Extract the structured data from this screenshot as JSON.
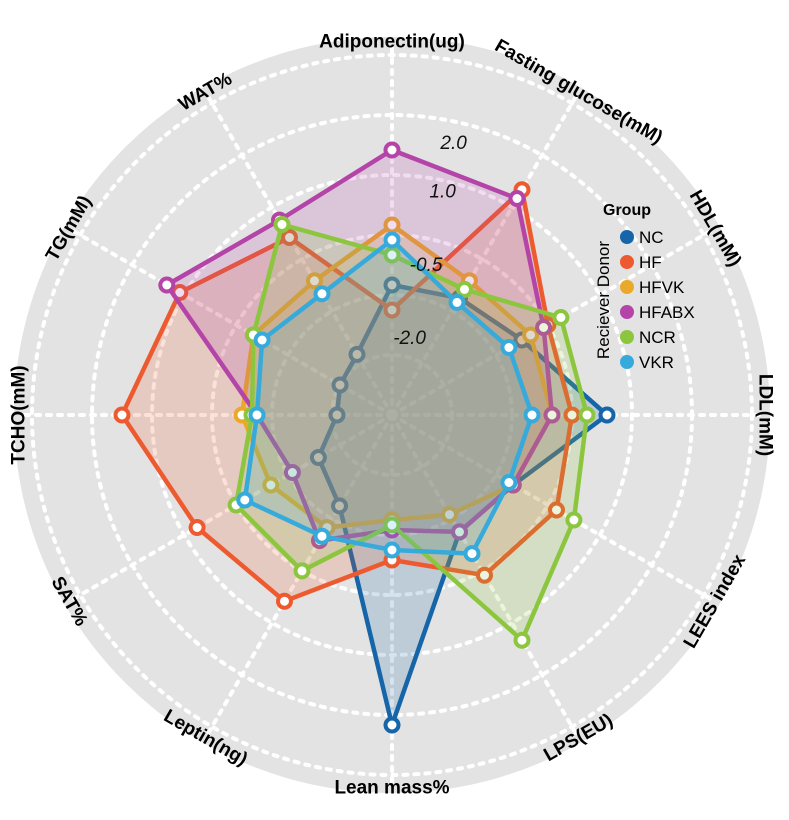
{
  "chart_data": {
    "type": "radar",
    "axes": [
      "Adiponectin(ug)",
      "Fasting glucose(mM)",
      "HDL(mM)",
      "LDL(mM)",
      "LEES index",
      "LPS(EU)",
      "Lean mass%",
      "Leptin(ng)",
      "SAT%",
      "TCHO(mM)",
      "TG(mM)",
      "WAT%"
    ],
    "rticks": [
      {
        "value": -2.0,
        "label": "-2.0"
      },
      {
        "value": -0.5,
        "label": "-0.5"
      },
      {
        "value": 1.0,
        "label": "1.0"
      },
      {
        "value": 2.0,
        "label": "2.0"
      }
    ],
    "rlim": [
      -3.6,
      3.6
    ],
    "grid": true,
    "legend": {
      "title": "Group",
      "vertical_label": "Reciever Donor",
      "placement": "right"
    },
    "series": [
      {
        "name": "NC",
        "color": "#1565A8",
        "values": [
          -1.0,
          -0.9,
          -0.6,
          0.7,
          -0.8,
          -0.9,
          2.6,
          -1.5,
          -1.9,
          -2.5,
          -2.4,
          -2.2
        ]
      },
      {
        "name": "HF",
        "color": "#EE5A2F",
        "values": [
          -1.5,
          1.6,
          0.0,
          0.0,
          0.2,
          0.1,
          -0.7,
          0.7,
          0.9,
          1.8,
          1.3,
          0.5
        ]
      },
      {
        "name": "HFVK",
        "color": "#EBA92A",
        "values": [
          0.2,
          -0.5,
          -0.4,
          -0.4,
          -0.8,
          -1.3,
          -1.5,
          -1.0,
          -0.8,
          -0.6,
          -0.4,
          -0.5
        ]
      },
      {
        "name": "HFABX",
        "color": "#B444A7",
        "values": [
          1.7,
          1.4,
          -0.1,
          -0.4,
          -0.8,
          -0.9,
          -1.3,
          -0.7,
          -1.3,
          -0.9,
          1.6,
          0.9
        ]
      },
      {
        "name": "NCR",
        "color": "#8CC63F",
        "values": [
          -0.4,
          -0.7,
          0.3,
          0.3,
          0.6,
          1.6,
          -1.4,
          0.0,
          0.0,
          -0.8,
          -0.4,
          0.8
        ]
      },
      {
        "name": "VKR",
        "color": "#37AADC",
        "values": [
          -0.1,
          -1.0,
          -0.9,
          -0.8,
          -0.9,
          -0.4,
          -0.9,
          -0.8,
          -0.2,
          -0.9,
          -0.6,
          -0.8
        ]
      }
    ]
  }
}
